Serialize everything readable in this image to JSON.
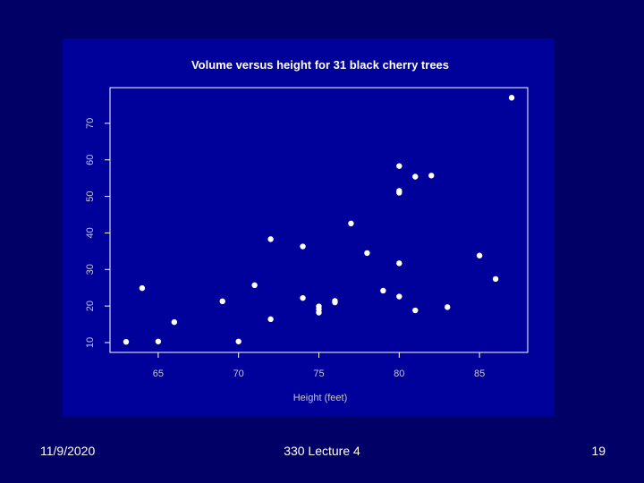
{
  "slide": {
    "footer_date": "11/9/2020",
    "footer_title": "330 Lecture 4",
    "page_number": "19"
  },
  "colors": {
    "background": "#000066",
    "plot_panel": "#00009a",
    "foreground": "#ffffff",
    "axis_label": "#c8c8c8"
  },
  "chart_data": {
    "type": "scatter",
    "title": "Volume versus height for 31 black cherry trees",
    "xlabel": "Height (feet)",
    "ylabel": "",
    "xlim": [
      62,
      88
    ],
    "ylim": [
      10,
      80
    ],
    "xticks": [
      65,
      70,
      75,
      80,
      85
    ],
    "yticks": [
      10,
      20,
      30,
      40,
      50,
      60,
      70
    ],
    "xtick_labels": [
      "65",
      "70",
      "75",
      "80",
      "85"
    ],
    "ytick_labels": [
      "10",
      "20",
      "30",
      "40",
      "50",
      "60",
      "70"
    ],
    "grid": false,
    "legend": "none",
    "x": [
      70,
      65,
      63,
      72,
      81,
      83,
      66,
      75,
      80,
      75,
      79,
      76,
      76,
      69,
      75,
      74,
      85,
      86,
      71,
      64,
      78,
      80,
      74,
      72,
      77,
      81,
      82,
      80,
      80,
      80,
      87
    ],
    "y": [
      10.3,
      10.3,
      10.2,
      16.4,
      18.8,
      19.7,
      15.6,
      18.2,
      22.6,
      19.9,
      24.2,
      21.0,
      21.4,
      21.3,
      19.1,
      22.2,
      33.8,
      27.4,
      25.7,
      24.9,
      34.5,
      31.7,
      36.3,
      38.3,
      42.6,
      55.4,
      55.7,
      58.3,
      51.5,
      51.0,
      77.0
    ]
  }
}
